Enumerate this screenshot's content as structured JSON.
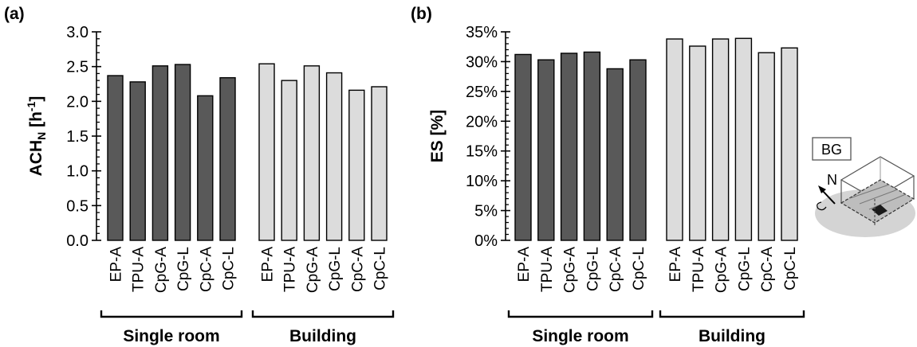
{
  "chart_data": [
    {
      "type": "bar",
      "panel": "(a)",
      "ylabel": {
        "main": "ACH",
        "sub": "N",
        "unit_open": " [h",
        "unit_sup": "-1",
        "unit_close": "]"
      },
      "ylim": [
        0,
        3.0
      ],
      "yticks": [
        "0.0",
        "0.5",
        "1.0",
        "1.5",
        "2.0",
        "2.5",
        "3.0"
      ],
      "ytick_values": [
        0,
        0.5,
        1.0,
        1.5,
        2.0,
        2.5,
        3.0
      ],
      "grid": false,
      "groups": [
        {
          "label": "Single room",
          "color": "#595959",
          "categories": [
            "EP-A",
            "TPU-A",
            "CpG-A",
            "CpG-L",
            "CpC-A",
            "CpC-L"
          ],
          "values": [
            2.37,
            2.28,
            2.51,
            2.53,
            2.08,
            2.34
          ]
        },
        {
          "label": "Building",
          "color": "#dcdcdc",
          "categories": [
            "EP-A",
            "TPU-A",
            "CpG-A",
            "CpG-L",
            "CpC-A",
            "CpC-L"
          ],
          "values": [
            2.54,
            2.3,
            2.51,
            2.41,
            2.16,
            2.21
          ]
        }
      ]
    },
    {
      "type": "bar",
      "panel": "(b)",
      "ylabel": {
        "main": "ES [%]"
      },
      "ylim": [
        0,
        35
      ],
      "yticks": [
        "0%",
        "5%",
        "10%",
        "15%",
        "20%",
        "25%",
        "30%",
        "35%"
      ],
      "ytick_values": [
        0,
        5,
        10,
        15,
        20,
        25,
        30,
        35
      ],
      "grid": false,
      "groups": [
        {
          "label": "Single room",
          "color": "#595959",
          "categories": [
            "EP-A",
            "TPU-A",
            "CpG-A",
            "CpG-L",
            "CpC-A",
            "CpC-L"
          ],
          "values": [
            31.2,
            30.3,
            31.4,
            31.6,
            28.8,
            30.3
          ]
        },
        {
          "label": "Building",
          "color": "#dcdcdc",
          "categories": [
            "EP-A",
            "TPU-A",
            "CpG-A",
            "CpG-L",
            "CpC-A",
            "CpC-L"
          ],
          "values": [
            33.8,
            32.6,
            33.8,
            33.9,
            31.5,
            32.3
          ]
        }
      ]
    }
  ],
  "inset": {
    "tag": "BG",
    "north": "N"
  }
}
